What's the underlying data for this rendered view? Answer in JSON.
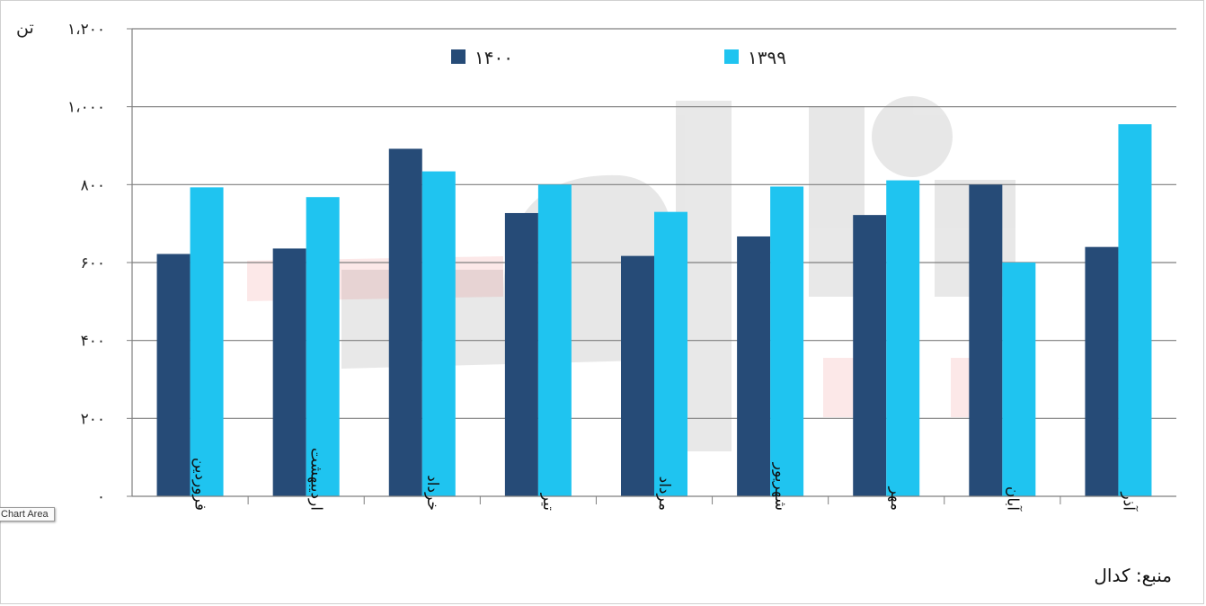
{
  "chart_data": {
    "type": "bar",
    "unit_label": "تن",
    "source": "منبع: کدال",
    "categories": [
      "فروردین",
      "اردیبهشت",
      "خرداد",
      "تیر",
      "مرداد",
      "شهریور",
      "مهر",
      "آبان",
      "آذر"
    ],
    "series": [
      {
        "name": "۱۴۰۰",
        "color": "#264b77",
        "values": [
          622,
          636,
          892,
          727,
          617,
          667,
          722,
          800,
          640
        ]
      },
      {
        "name": "۱۳۹۹",
        "color": "#1fc4f0",
        "values": [
          793,
          768,
          834,
          800,
          730,
          795,
          811,
          600,
          955
        ]
      }
    ],
    "ylim": [
      0,
      1200
    ],
    "y_ticks": [
      {
        "value": 0,
        "label": "۰"
      },
      {
        "value": 200,
        "label": "۲۰۰"
      },
      {
        "value": 400,
        "label": "۴۰۰"
      },
      {
        "value": 600,
        "label": "۶۰۰"
      },
      {
        "value": 800,
        "label": "۸۰۰"
      },
      {
        "value": 1000,
        "label": "۱،۰۰۰"
      },
      {
        "value": 1200,
        "label": "۱،۲۰۰"
      }
    ],
    "grid": true,
    "legend_position": "top"
  },
  "tooltip": "Chart Area"
}
